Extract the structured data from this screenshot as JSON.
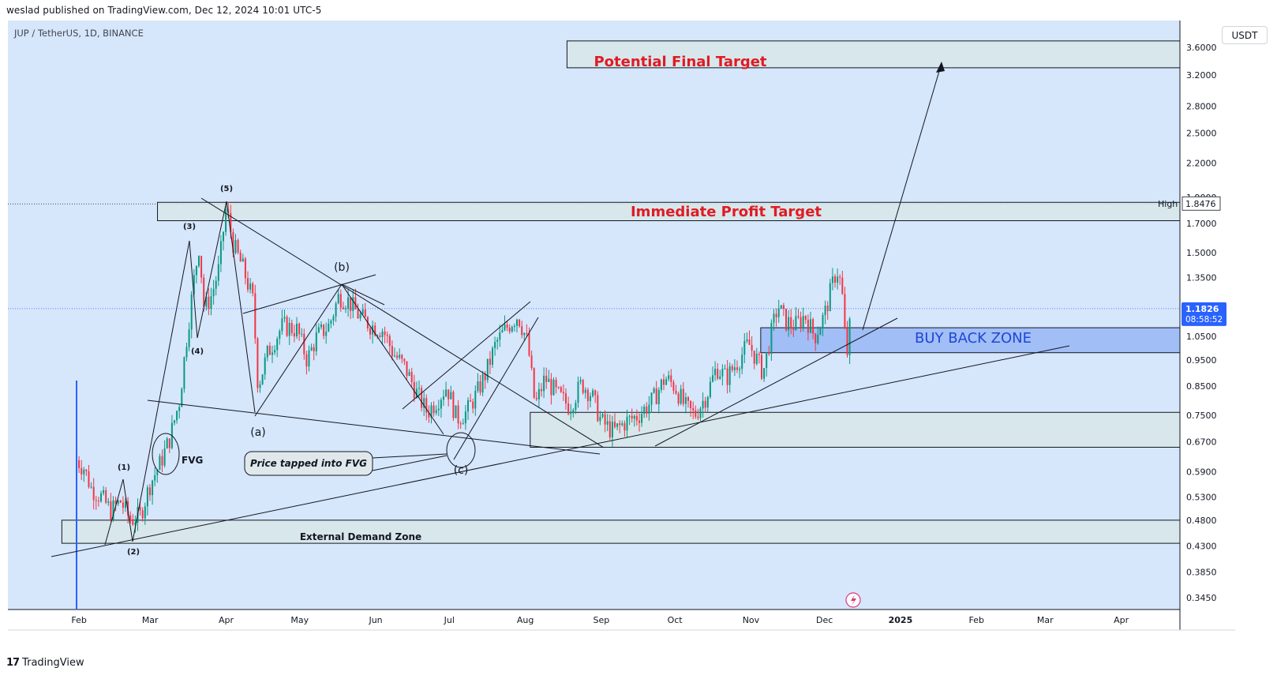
{
  "header": {
    "published": "weslad published on TradingView.com, Dec 12, 2024 10:01 UTC-5"
  },
  "symbol": "JUP / TetherUS, 1D, BINANCE",
  "currency": "USDT",
  "footer": {
    "brand": "TradingView",
    "mark": "17"
  },
  "colors": {
    "background": "#d6e6fb",
    "up": "#089981",
    "down": "#f23645",
    "target_red": "#e01b24",
    "buy_zone_fill": "#9ebcf5",
    "buy_zone_text": "#1f47d6",
    "zone_fill": "#d7e6e7",
    "price_label_bg": "#2962ff"
  },
  "chart_data": {
    "type": "candlestick",
    "scale": "log",
    "y_ticks": [
      "3.6000",
      "3.2000",
      "2.8000",
      "2.5000",
      "2.2000",
      "1.9000",
      "1.7000",
      "1.5000",
      "1.3500",
      "1.0500",
      "0.9500",
      "0.8500",
      "0.7500",
      "0.6700",
      "0.5900",
      "0.5300",
      "0.4800",
      "0.4300",
      "0.3850",
      "0.3450"
    ],
    "x_ticks": [
      "Feb",
      "Mar",
      "Apr",
      "May",
      "Jun",
      "Jul",
      "Aug",
      "Sep",
      "Oct",
      "Nov",
      "Dec",
      "2025",
      "Feb",
      "Mar",
      "Apr"
    ],
    "ylim": [
      0.32,
      3.7
    ],
    "last_price": {
      "value": "1.1826",
      "countdown": "08:58:52"
    },
    "high": {
      "label": "High",
      "value": "1.8476"
    },
    "price_path": [
      [
        "2024-01-31",
        0.62
      ],
      [
        "2024-02-03",
        0.6
      ],
      [
        "2024-02-06",
        0.55
      ],
      [
        "2024-02-10",
        0.53
      ],
      [
        "2024-02-14",
        0.5
      ],
      [
        "2024-02-18",
        0.52
      ],
      [
        "2024-02-22",
        0.48
      ],
      [
        "2024-02-26",
        0.49
      ],
      [
        "2024-03-01",
        0.56
      ],
      [
        "2024-03-05",
        0.61
      ],
      [
        "2024-03-09",
        0.68
      ],
      [
        "2024-03-13",
        0.8
      ],
      [
        "2024-03-16",
        1.05
      ],
      [
        "2024-03-19",
        1.35
      ],
      [
        "2024-03-21",
        1.55
      ],
      [
        "2024-03-23",
        1.18
      ],
      [
        "2024-03-26",
        1.25
      ],
      [
        "2024-03-29",
        1.4
      ],
      [
        "2024-04-01",
        1.82
      ],
      [
        "2024-04-04",
        1.55
      ],
      [
        "2024-04-08",
        1.4
      ],
      [
        "2024-04-12",
        1.22
      ],
      [
        "2024-04-14",
        0.85
      ],
      [
        "2024-04-18",
        0.98
      ],
      [
        "2024-04-24",
        1.1
      ],
      [
        "2024-04-30",
        1.08
      ],
      [
        "2024-05-04",
        0.95
      ],
      [
        "2024-05-08",
        1.05
      ],
      [
        "2024-05-13",
        1.1
      ],
      [
        "2024-05-17",
        1.25
      ],
      [
        "2024-05-21",
        1.22
      ],
      [
        "2024-05-25",
        1.15
      ],
      [
        "2024-05-30",
        1.1
      ],
      [
        "2024-06-04",
        1.08
      ],
      [
        "2024-06-08",
        0.98
      ],
      [
        "2024-06-13",
        0.92
      ],
      [
        "2024-06-18",
        0.82
      ],
      [
        "2024-06-22",
        0.76
      ],
      [
        "2024-06-26",
        0.8
      ],
      [
        "2024-06-30",
        0.85
      ],
      [
        "2024-07-04",
        0.74
      ],
      [
        "2024-07-08",
        0.76
      ],
      [
        "2024-07-12",
        0.82
      ],
      [
        "2024-07-16",
        0.9
      ],
      [
        "2024-07-20",
        1.02
      ],
      [
        "2024-07-25",
        1.1
      ],
      [
        "2024-07-29",
        1.15
      ],
      [
        "2024-08-02",
        1.02
      ],
      [
        "2024-08-05",
        0.78
      ],
      [
        "2024-08-09",
        0.88
      ],
      [
        "2024-08-14",
        0.82
      ],
      [
        "2024-08-19",
        0.78
      ],
      [
        "2024-08-24",
        0.86
      ],
      [
        "2024-08-28",
        0.82
      ],
      [
        "2024-09-01",
        0.73
      ],
      [
        "2024-09-06",
        0.7
      ],
      [
        "2024-09-11",
        0.73
      ],
      [
        "2024-09-16",
        0.75
      ],
      [
        "2024-09-22",
        0.8
      ],
      [
        "2024-09-27",
        0.88
      ],
      [
        "2024-10-01",
        0.85
      ],
      [
        "2024-10-05",
        0.78
      ],
      [
        "2024-10-09",
        0.75
      ],
      [
        "2024-10-14",
        0.82
      ],
      [
        "2024-10-18",
        0.92
      ],
      [
        "2024-10-22",
        0.88
      ],
      [
        "2024-10-27",
        0.95
      ],
      [
        "2024-10-31",
        1.02
      ],
      [
        "2024-11-03",
        0.96
      ],
      [
        "2024-11-06",
        0.9
      ],
      [
        "2024-11-09",
        1.05
      ],
      [
        "2024-11-12",
        1.2
      ],
      [
        "2024-11-15",
        1.12
      ],
      [
        "2024-11-19",
        1.1
      ],
      [
        "2024-11-23",
        1.15
      ],
      [
        "2024-11-27",
        1.05
      ],
      [
        "2024-12-01",
        1.15
      ],
      [
        "2024-12-04",
        1.3
      ],
      [
        "2024-12-06",
        1.4
      ],
      [
        "2024-12-08",
        1.3
      ],
      [
        "2024-12-10",
        0.95
      ],
      [
        "2024-12-12",
        1.18
      ]
    ],
    "zones": [
      {
        "label": "Potential Final Target",
        "from": "2024-08-18",
        "to": "2025-04-30",
        "low": 3.3,
        "high": 3.7
      },
      {
        "label": "Immediate Profit Target",
        "from": "2024-03-04",
        "to": "2025-04-30",
        "low": 1.72,
        "high": 1.86
      },
      {
        "label": "BUY BACK ZONE",
        "from": "2024-11-05",
        "to": "2025-04-30",
        "low": 0.98,
        "high": 1.09
      },
      {
        "label": "",
        "from": "2024-08-03",
        "to": "2025-04-30",
        "low": 0.655,
        "high": 0.76
      },
      {
        "label": "External Demand Zone",
        "from": "2024-01-25",
        "to": "2025-04-30",
        "low": 0.435,
        "high": 0.48
      }
    ],
    "wave_labels": [
      "(1)",
      "(2)",
      "(3)",
      "(4)",
      "(5)",
      "(a)",
      "(b)",
      "(c)"
    ],
    "annotations": {
      "fvg": "FVG",
      "callout": "Price tapped into FVG"
    }
  }
}
